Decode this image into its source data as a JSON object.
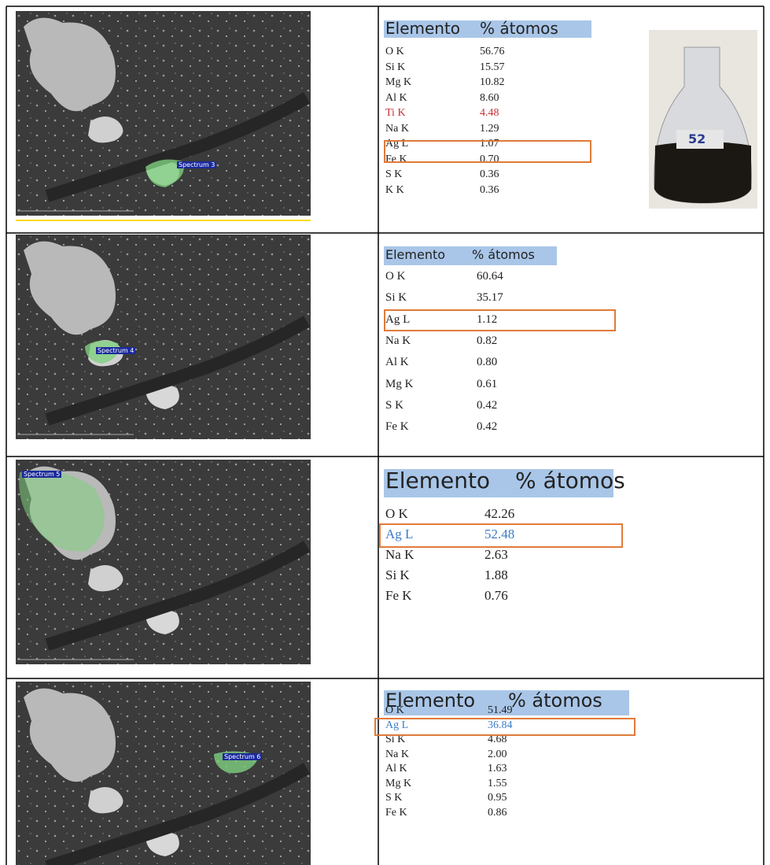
{
  "rows": [
    {
      "image_label": "Spectrum 3",
      "table": {
        "header": [
          "Elemento",
          "% átomos"
        ],
        "rows": [
          [
            "O K",
            "56.76"
          ],
          [
            "Si K",
            "15.57"
          ],
          [
            "Mg K",
            "10.82"
          ],
          [
            "Al K",
            "8.60"
          ],
          [
            "Ti K",
            "4.48"
          ],
          [
            "Na K",
            "1.29"
          ],
          [
            "Ag L",
            "1.07"
          ],
          [
            "Fe K",
            "0.70"
          ],
          [
            "S K",
            "0.36"
          ],
          [
            "K K",
            "0.36"
          ]
        ]
      },
      "photo_label": "52"
    },
    {
      "image_label": "Spectrum 4",
      "table": {
        "header": [
          "Elemento",
          "% átomos"
        ],
        "rows": [
          [
            "O K",
            "60.64"
          ],
          [
            "Si K",
            "35.17"
          ],
          [
            "Ag L",
            "1.12"
          ],
          [
            "Na K",
            "0.82"
          ],
          [
            "Al K",
            "0.80"
          ],
          [
            "Mg K",
            "0.61"
          ],
          [
            "S K",
            "0.42"
          ],
          [
            "Fe K",
            "0.42"
          ]
        ]
      }
    },
    {
      "image_label": "Spectrum 5",
      "table": {
        "header": [
          "Elemento",
          "% átomos"
        ],
        "rows": [
          [
            "O K",
            "42.26"
          ],
          [
            "Ag L",
            "52.48"
          ],
          [
            "Na K",
            "2.63"
          ],
          [
            "Si K",
            "1.88"
          ],
          [
            "Fe K",
            "0.76"
          ]
        ]
      }
    },
    {
      "image_label": "Spectrum 6",
      "table": {
        "header": [
          "Elemento",
          "% átomos"
        ],
        "rows": [
          [
            "O K",
            "51.49"
          ],
          [
            "Ag L",
            "36.84"
          ],
          [
            "Si K",
            "4.68"
          ],
          [
            "Na K",
            "2.00"
          ],
          [
            "Al K",
            "1.63"
          ],
          [
            "Mg K",
            "1.55"
          ],
          [
            "S K",
            "0.95"
          ],
          [
            "Fe K",
            "0.86"
          ]
        ]
      }
    }
  ]
}
